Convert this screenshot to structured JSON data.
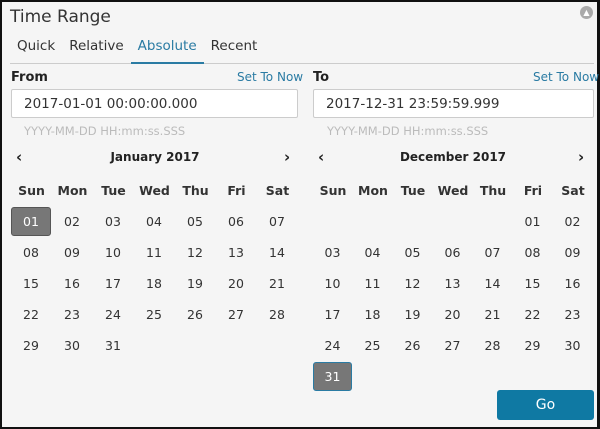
{
  "title": "Time Range",
  "tabs": [
    {
      "label": "Quick"
    },
    {
      "label": "Relative"
    },
    {
      "label": "Absolute",
      "active": true
    },
    {
      "label": "Recent"
    }
  ],
  "from": {
    "label": "From",
    "set_now": "Set To Now",
    "value": "2017-01-01 00:00:00.000",
    "hint": "YYYY-MM-DD HH:mm:ss.SSS",
    "calendar": {
      "month": "January 2017",
      "selected": "01",
      "weekdays": [
        "Sun",
        "Mon",
        "Tue",
        "Wed",
        "Thu",
        "Fri",
        "Sat"
      ],
      "weeks": [
        [
          "01",
          "02",
          "03",
          "04",
          "05",
          "06",
          "07"
        ],
        [
          "08",
          "09",
          "10",
          "11",
          "12",
          "13",
          "14"
        ],
        [
          "15",
          "16",
          "17",
          "18",
          "19",
          "20",
          "21"
        ],
        [
          "22",
          "23",
          "24",
          "25",
          "26",
          "27",
          "28"
        ],
        [
          "29",
          "30",
          "31",
          "",
          "",
          "",
          ""
        ]
      ]
    }
  },
  "to": {
    "label": "To",
    "set_now": "Set To Now",
    "value": "2017-12-31 23:59:59.999",
    "hint": "YYYY-MM-DD HH:mm:ss.SSS",
    "calendar": {
      "month": "December 2017",
      "selected": "31",
      "weekdays": [
        "Sun",
        "Mon",
        "Tue",
        "Wed",
        "Thu",
        "Fri",
        "Sat"
      ],
      "weeks": [
        [
          "",
          "",
          "",
          "",
          "",
          "01",
          "02"
        ],
        [
          "03",
          "04",
          "05",
          "06",
          "07",
          "08",
          "09"
        ],
        [
          "10",
          "11",
          "12",
          "13",
          "14",
          "15",
          "16"
        ],
        [
          "17",
          "18",
          "19",
          "20",
          "21",
          "22",
          "23"
        ],
        [
          "24",
          "25",
          "26",
          "27",
          "28",
          "29",
          "30"
        ],
        [
          "31",
          "",
          "",
          "",
          "",
          "",
          ""
        ]
      ]
    }
  },
  "go_label": "Go",
  "colors": {
    "accent": "#2a7ba3",
    "go_button": "#0f79a3",
    "selected_day": "#777777"
  }
}
